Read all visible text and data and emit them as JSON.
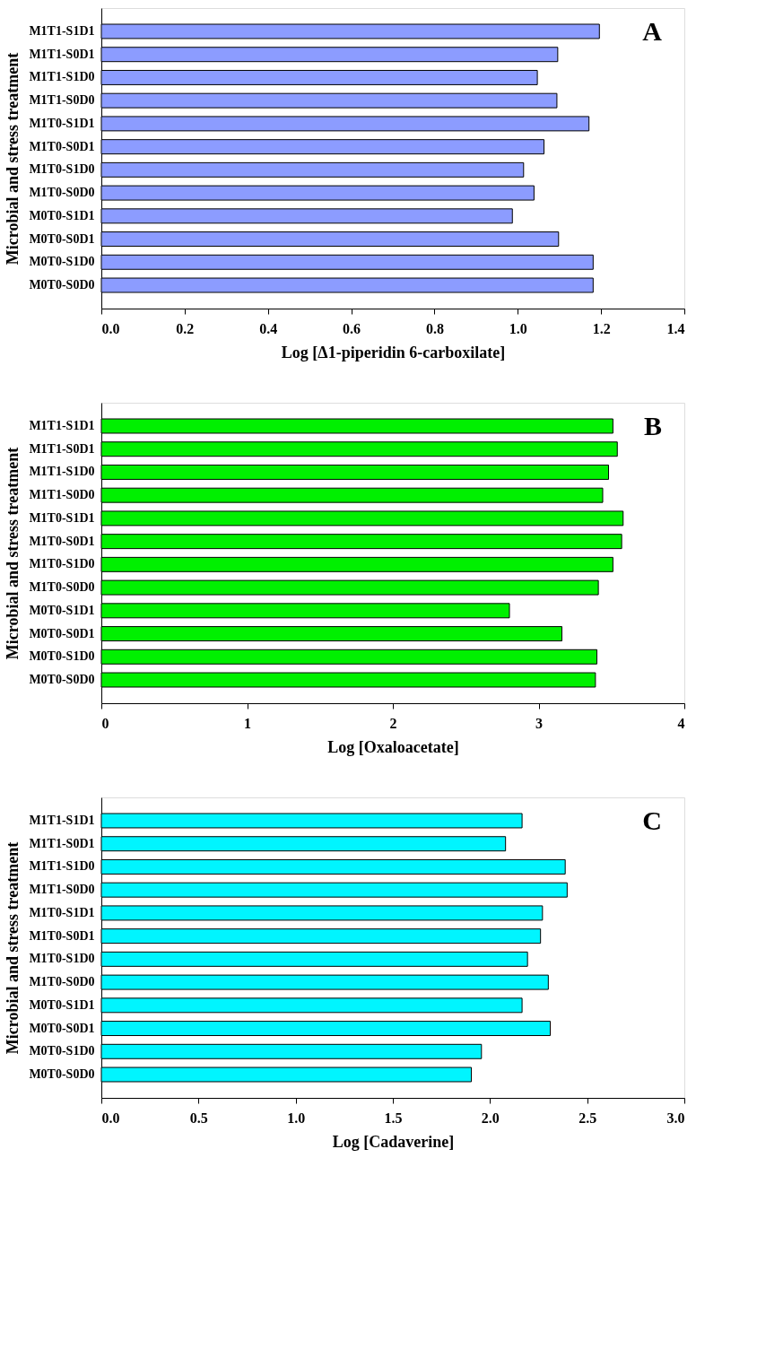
{
  "chart_data": [
    {
      "type": "bar",
      "orientation": "horizontal",
      "categories": [
        "M1T1-S1D1",
        "M1T1-S0D1",
        "M1T1-S1D0",
        "M1T1-S0D0",
        "M1T0-S1D1",
        "M1T0-S0D1",
        "M1T0-S1D0",
        "M1T0-S0D0",
        "M0T0-S1D1",
        "M0T0-S0D1",
        "M0T0-S1D0",
        "M0T0-S0D0"
      ],
      "values": [
        1.196,
        1.096,
        1.047,
        1.094,
        1.171,
        1.063,
        1.014,
        1.039,
        0.987,
        1.098,
        1.181,
        1.181
      ],
      "color": "#8c9cff",
      "xlim": [
        0,
        1.4
      ],
      "xticks": [
        {
          "value": 0,
          "label": "0.0"
        },
        0.2,
        0.4,
        0.6,
        0.8,
        {
          "value": 1,
          "label": "1.0"
        },
        1.2,
        1.4
      ],
      "xlabel": "Log [Δ1-piperidin 6-carboxilate]",
      "ylabel": "Microbial and stress treatment",
      "annotations": [
        "A"
      ],
      "grid": false
    },
    {
      "type": "bar",
      "orientation": "horizontal",
      "categories": [
        "M1T1-S1D1",
        "M1T1-S0D1",
        "M1T1-S1D0",
        "M1T1-S0D0",
        "M1T0-S1D1",
        "M1T0-S0D1",
        "M1T0-S1D0",
        "M1T0-S0D0",
        "M0T0-S1D1",
        "M0T0-S0D1",
        "M0T0-S1D0",
        "M0T0-S0D0"
      ],
      "values": [
        3.51,
        3.54,
        3.48,
        3.44,
        3.58,
        3.57,
        3.51,
        3.41,
        2.8,
        3.16,
        3.4,
        3.39
      ],
      "color": "#00f000",
      "xlim": [
        0,
        4
      ],
      "xticks": [
        0,
        1,
        2,
        3,
        4
      ],
      "xlabel": "Log [Oxaloacetate]",
      "ylabel": "Microbial and stress treatment",
      "annotations": [
        "B"
      ],
      "grid": false
    },
    {
      "type": "bar",
      "orientation": "horizontal",
      "categories": [
        "M1T1-S1D1",
        "M1T1-S0D1",
        "M1T1-S1D0",
        "M1T1-S0D0",
        "M1T0-S1D1",
        "M1T0-S0D1",
        "M1T0-S1D0",
        "M1T0-S0D0",
        "M0T0-S1D1",
        "M0T0-S0D1",
        "M0T0-S1D0",
        "M0T0-S0D0"
      ],
      "values": [
        2.165,
        2.08,
        2.387,
        2.397,
        2.27,
        2.26,
        2.193,
        2.3,
        2.165,
        2.31,
        1.956,
        1.904
      ],
      "color": "#00f5ff",
      "xlim": [
        0,
        3
      ],
      "xticks": [
        {
          "value": 0,
          "label": "0.0"
        },
        0.5,
        {
          "value": 1,
          "label": "1.0"
        },
        1.5,
        {
          "value": 2,
          "label": "2.0"
        },
        2.5,
        {
          "value": 3,
          "label": "3.0"
        }
      ],
      "xlabel": "Log [Cadaverine]",
      "ylabel": "Microbial and stress treatment",
      "annotations": [
        "C"
      ],
      "grid": false
    }
  ]
}
